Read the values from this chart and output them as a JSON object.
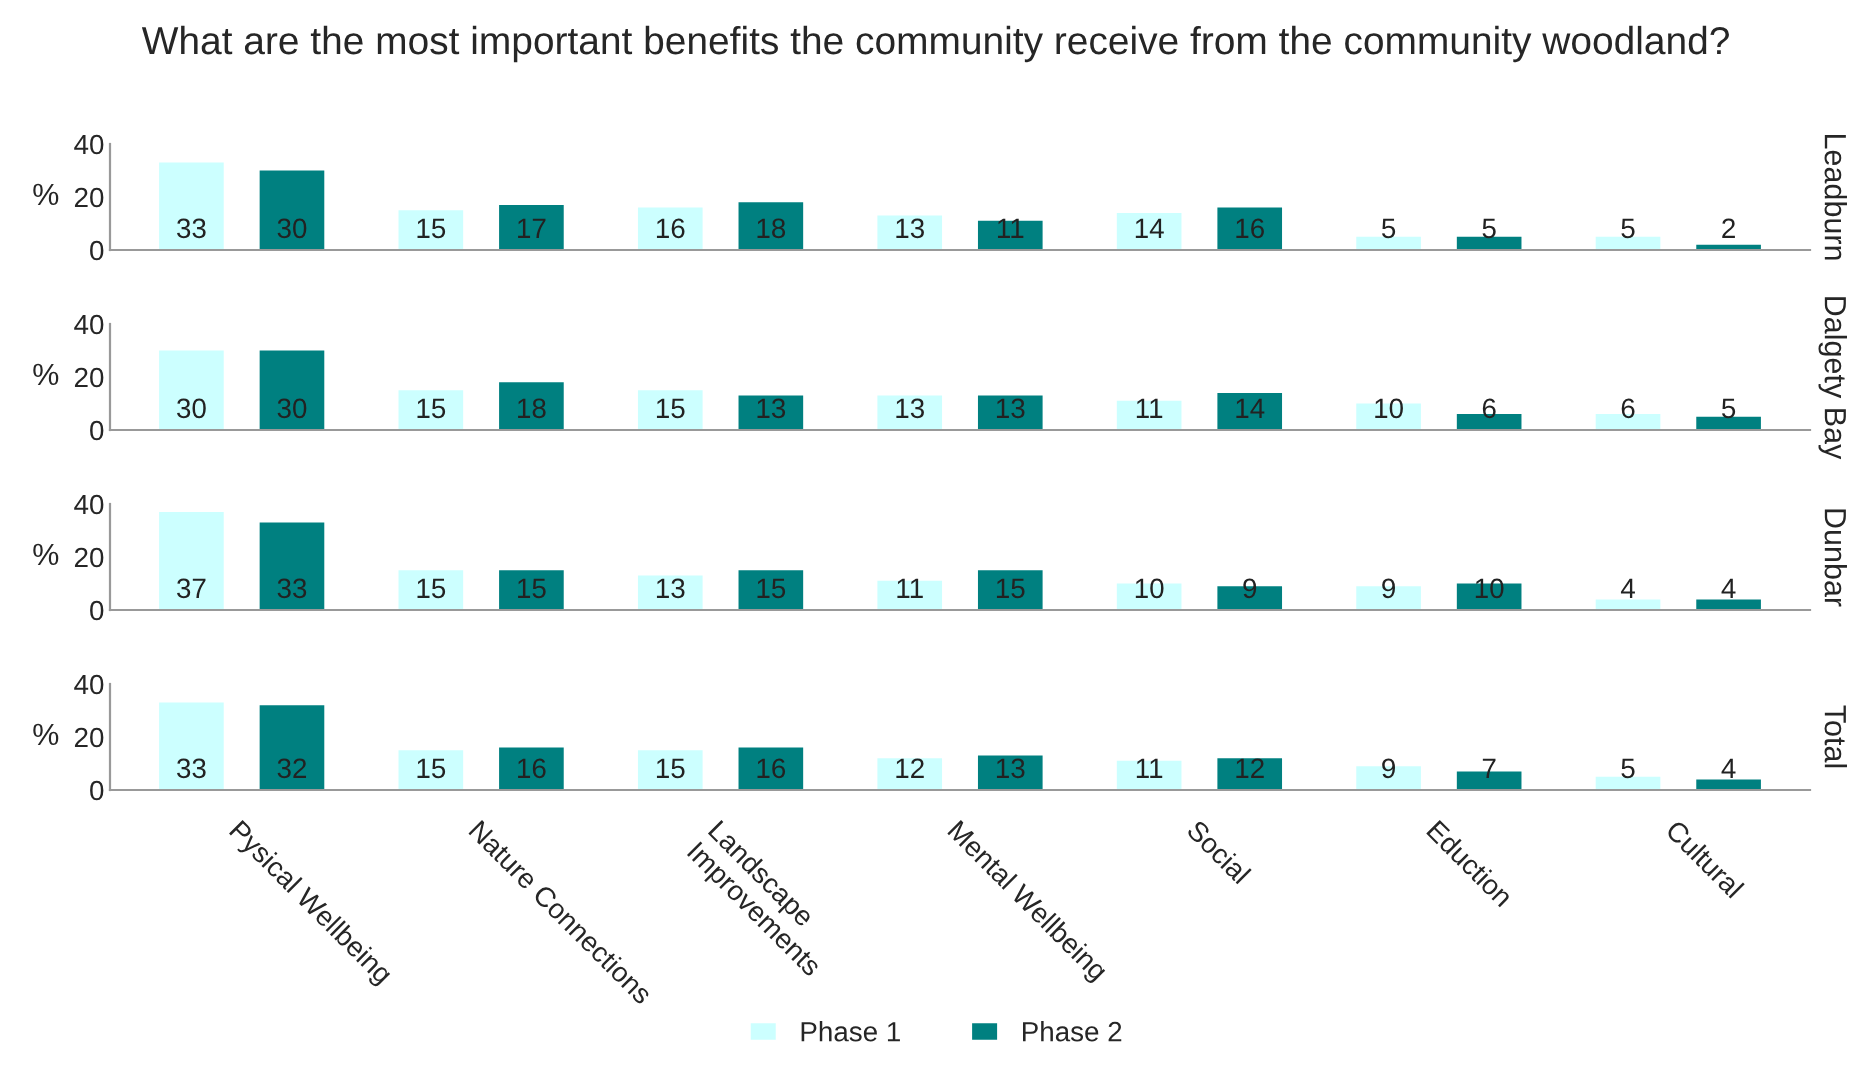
{
  "chart_data": [
    {
      "type": "bar",
      "title": "What are the most important benefits the community receive from the community woodland?",
      "y2label": "Leadburn",
      "ylabel": "%",
      "categories": [
        null,
        null,
        null,
        null,
        null,
        null,
        null
      ],
      "series": [
        {
          "color": "#ccffff",
          "values": [
            33,
            15,
            16,
            13,
            14,
            5,
            5
          ]
        },
        {
          "color": "#008080",
          "values": [
            30,
            17,
            18,
            11,
            16,
            5,
            2
          ]
        }
      ],
      "ylim": [
        0,
        40
      ],
      "yticks": [
        0,
        20,
        40
      ],
      "data_labels": true,
      "tick_labels": "y"
    },
    {
      "type": "bar",
      "y2label": "Dalgety Bay",
      "ylabel": "%",
      "categories": [
        null,
        null,
        null,
        null,
        null,
        null,
        null
      ],
      "series": [
        {
          "color": "#ccffff",
          "values": [
            30,
            15,
            15,
            13,
            11,
            10,
            6
          ]
        },
        {
          "color": "#008080",
          "values": [
            30,
            18,
            13,
            13,
            14,
            6,
            5
          ]
        }
      ],
      "ylim": [
        0,
        40
      ],
      "yticks": [
        0,
        20,
        40
      ],
      "data_labels": true,
      "tick_labels": "y"
    },
    {
      "type": "bar",
      "y2label": "Dunbar",
      "ylabel": "%",
      "categories": [
        null,
        null,
        null,
        null,
        null,
        null,
        null
      ],
      "series": [
        {
          "color": "#ccffff",
          "values": [
            37,
            15,
            13,
            11,
            10,
            9,
            4
          ]
        },
        {
          "color": "#008080",
          "values": [
            33,
            15,
            15,
            15,
            9,
            10,
            4
          ]
        }
      ],
      "ylim": [
        0,
        40
      ],
      "yticks": [
        0,
        20,
        40
      ],
      "data_labels": true,
      "tick_labels": "y"
    },
    {
      "type": "bar",
      "y2label": "Total",
      "ylabel": "%",
      "categories": [
        "Pysical Wellbeing",
        "Nature Connections",
        "Landscape\nImprovements",
        "Mental Wellbeing",
        "Social",
        "Eduction",
        "Cultural"
      ],
      "series": [
        {
          "name": "Phase 1",
          "color": "#ccffff",
          "values": [
            33,
            15,
            15,
            12,
            11,
            9,
            5
          ]
        },
        {
          "name": "Phase 2",
          "color": "#008080",
          "values": [
            32,
            16,
            16,
            13,
            12,
            7,
            4
          ]
        }
      ],
      "ylim": [
        0,
        40
      ],
      "yticks": [
        0,
        20,
        40
      ],
      "data_labels": true,
      "legend": "bottom"
    }
  ]
}
